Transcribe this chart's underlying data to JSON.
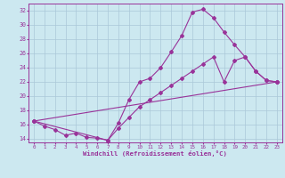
{
  "xlabel": "Windchill (Refroidissement éolien,°C)",
  "bg_color": "#cce8f0",
  "line_color": "#993399",
  "grid_color": "#aac8d8",
  "spine_color": "#993399",
  "xlim": [
    -0.5,
    23.5
  ],
  "ylim": [
    13.5,
    33.0
  ],
  "yticks": [
    14,
    16,
    18,
    20,
    22,
    24,
    26,
    28,
    30,
    32
  ],
  "xticks": [
    0,
    1,
    2,
    3,
    4,
    5,
    6,
    7,
    8,
    9,
    10,
    11,
    12,
    13,
    14,
    15,
    16,
    17,
    18,
    19,
    20,
    21,
    22,
    23
  ],
  "curve1_x": [
    0,
    1,
    2,
    3,
    4,
    5,
    6,
    7,
    8,
    9,
    10,
    11,
    12,
    13,
    14,
    15,
    16,
    17,
    18,
    19,
    20,
    21,
    22,
    23
  ],
  "curve1_y": [
    16.5,
    15.8,
    15.3,
    14.5,
    14.8,
    14.2,
    14.1,
    13.8,
    16.2,
    19.5,
    22.0,
    22.5,
    24.0,
    26.2,
    28.5,
    31.8,
    32.2,
    31.0,
    29.0,
    27.2,
    25.5,
    23.5,
    22.2,
    22.0
  ],
  "curve2_x": [
    0,
    7,
    8,
    9,
    10,
    11,
    12,
    13,
    14,
    15,
    16,
    17,
    18,
    19,
    20,
    21,
    22,
    23
  ],
  "curve2_y": [
    16.5,
    13.8,
    15.5,
    17.0,
    18.5,
    19.5,
    20.5,
    21.5,
    22.5,
    23.5,
    24.5,
    25.5,
    22.0,
    25.0,
    25.5,
    23.5,
    22.2,
    22.0
  ],
  "curve3_x": [
    0,
    23
  ],
  "curve3_y": [
    16.5,
    22.0
  ]
}
